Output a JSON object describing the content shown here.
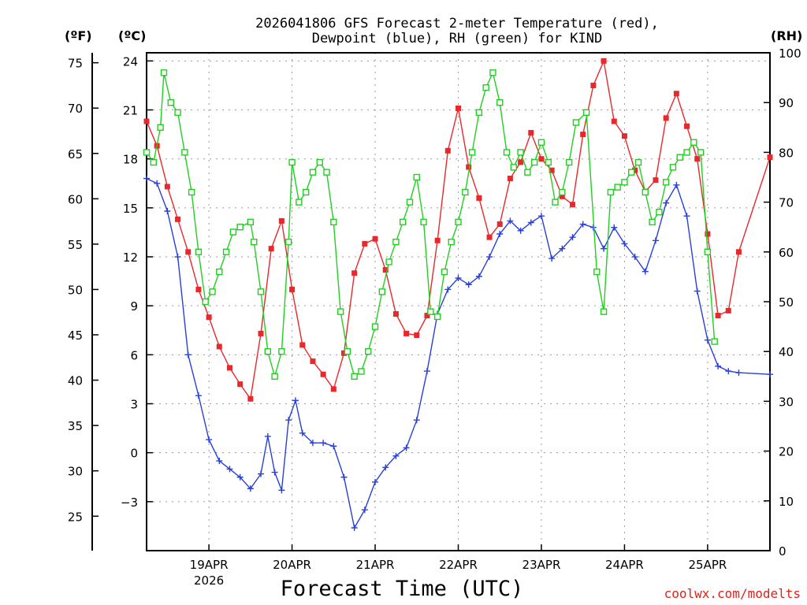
{
  "header": {
    "title_line1": "2026041806 GFS Forecast 2-meter Temperature (red),",
    "title_line2": "Dewpoint (blue), RH (green) for KIND",
    "unit_f": "(ºF)",
    "unit_c": "(ºC)",
    "unit_rh": "(RH)"
  },
  "footer": {
    "xlabel": "Forecast Time (UTC)",
    "credit": "coolwx.com/modelts"
  },
  "colors": {
    "temperature": "#e8282a",
    "dewpoint": "#2840d8",
    "rh": "#20d020",
    "grid": "#9a9a9a"
  },
  "chart_data": {
    "type": "line",
    "title": "2026041806 GFS Forecast 2-meter Temperature (red), Dewpoint (blue), RH (green) for KIND",
    "xlabel": "Forecast Time (UTC)",
    "x_unit": "hours since 2026-04-18 06Z",
    "xlim": [
      0,
      180
    ],
    "x_ticks": [
      {
        "hour": 18,
        "label": "19APR",
        "sublabel": "2026"
      },
      {
        "hour": 42,
        "label": "20APR",
        "sublabel": ""
      },
      {
        "hour": 66,
        "label": "21APR",
        "sublabel": ""
      },
      {
        "hour": 90,
        "label": "22APR",
        "sublabel": ""
      },
      {
        "hour": 114,
        "label": "23APR",
        "sublabel": ""
      },
      {
        "hour": 138,
        "label": "24APR",
        "sublabel": ""
      },
      {
        "hour": 162,
        "label": "25APR",
        "sublabel": ""
      }
    ],
    "left_axis_c": {
      "label": "(ºC)",
      "range": [
        -6,
        24.5
      ],
      "ticks": [
        24,
        21,
        18,
        15,
        12,
        9,
        6,
        3,
        0,
        -3
      ]
    },
    "left_axis_f": {
      "label": "(ºF)",
      "ticks": [
        75,
        70,
        65,
        60,
        55,
        50,
        45,
        40,
        35,
        30,
        25
      ]
    },
    "right_axis_rh": {
      "label": "(RH)",
      "range": [
        0,
        100
      ],
      "ticks": [
        100,
        90,
        80,
        70,
        60,
        50,
        40,
        30,
        20,
        10,
        0
      ]
    },
    "series": [
      {
        "name": "Temperature (red)",
        "unit": "C",
        "axis": "c",
        "marker": "filled-square",
        "points": [
          [
            0,
            20.3
          ],
          [
            3,
            18.8
          ],
          [
            6,
            16.3
          ],
          [
            9,
            14.3
          ],
          [
            12,
            12.3
          ],
          [
            15,
            10
          ],
          [
            18,
            8.3
          ],
          [
            21,
            6.5
          ],
          [
            24,
            5.2
          ],
          [
            27,
            4.2
          ],
          [
            30,
            3.3
          ],
          [
            33,
            7.3
          ],
          [
            36,
            12.5
          ],
          [
            39,
            14.2
          ],
          [
            42,
            10
          ],
          [
            45,
            6.6
          ],
          [
            48,
            5.6
          ],
          [
            51,
            4.8
          ],
          [
            54,
            3.9
          ],
          [
            57,
            6.1
          ],
          [
            60,
            11
          ],
          [
            63,
            12.8
          ],
          [
            66,
            13.1
          ],
          [
            69,
            11.2
          ],
          [
            72,
            8.5
          ],
          [
            75,
            7.3
          ],
          [
            78,
            7.2
          ],
          [
            81,
            8.4
          ],
          [
            84,
            13
          ],
          [
            87,
            18.5
          ],
          [
            90,
            21.1
          ],
          [
            93,
            17.5
          ],
          [
            96,
            15.6
          ],
          [
            99,
            13.2
          ],
          [
            102,
            14
          ],
          [
            105,
            16.8
          ],
          [
            108,
            17.8
          ],
          [
            111,
            19.6
          ],
          [
            114,
            18
          ],
          [
            117,
            17.3
          ],
          [
            120,
            15.7
          ],
          [
            123,
            15.2
          ],
          [
            126,
            19.5
          ],
          [
            129,
            22.5
          ],
          [
            132,
            24
          ],
          [
            135,
            20.3
          ],
          [
            138,
            19.4
          ],
          [
            141,
            17.3
          ],
          [
            144,
            16
          ],
          [
            147,
            16.7
          ],
          [
            150,
            20.5
          ],
          [
            153,
            22
          ],
          [
            156,
            20
          ],
          [
            159,
            18
          ],
          [
            162,
            13.4
          ],
          [
            165,
            8.4
          ],
          [
            168,
            8.7
          ],
          [
            171,
            12.3
          ],
          [
            180,
            18.1
          ]
        ]
      },
      {
        "name": "Dewpoint (blue)",
        "unit": "C",
        "axis": "c",
        "marker": "plus",
        "points": [
          [
            0,
            16.8
          ],
          [
            3,
            16.5
          ],
          [
            6,
            14.8
          ],
          [
            9,
            12
          ],
          [
            12,
            6
          ],
          [
            15,
            3.5
          ],
          [
            18,
            0.8
          ],
          [
            21,
            -0.5
          ],
          [
            24,
            -1.0
          ],
          [
            27,
            -1.5
          ],
          [
            30,
            -2.2
          ],
          [
            33,
            -1.3
          ],
          [
            35,
            1.0
          ],
          [
            37,
            -1.2
          ],
          [
            39,
            -2.3
          ],
          [
            41,
            2.0
          ],
          [
            43,
            3.2
          ],
          [
            45,
            1.2
          ],
          [
            48,
            0.6
          ],
          [
            51,
            0.6
          ],
          [
            54,
            0.4
          ],
          [
            57,
            -1.5
          ],
          [
            60,
            -4.6
          ],
          [
            63,
            -3.5
          ],
          [
            66,
            -1.8
          ],
          [
            69,
            -0.9
          ],
          [
            72,
            -0.2
          ],
          [
            75,
            0.3
          ],
          [
            78,
            2.0
          ],
          [
            81,
            5.0
          ],
          [
            84,
            8.5
          ],
          [
            87,
            10
          ],
          [
            90,
            10.7
          ],
          [
            93,
            10.3
          ],
          [
            96,
            10.8
          ],
          [
            99,
            12
          ],
          [
            102,
            13.4
          ],
          [
            105,
            14.2
          ],
          [
            108,
            13.6
          ],
          [
            111,
            14.1
          ],
          [
            114,
            14.5
          ],
          [
            117,
            11.9
          ],
          [
            120,
            12.5
          ],
          [
            123,
            13.2
          ],
          [
            126,
            14
          ],
          [
            129,
            13.8
          ],
          [
            132,
            12.5
          ],
          [
            135,
            13.8
          ],
          [
            138,
            12.8
          ],
          [
            141,
            12
          ],
          [
            144,
            11.1
          ],
          [
            147,
            13
          ],
          [
            150,
            15.3
          ],
          [
            153,
            16.4
          ],
          [
            156,
            14.5
          ],
          [
            159,
            9.9
          ],
          [
            162,
            6.9
          ],
          [
            165,
            5.3
          ],
          [
            168,
            5
          ],
          [
            171,
            4.9
          ],
          [
            180,
            4.8
          ]
        ]
      },
      {
        "name": "RH (green)",
        "unit": "%",
        "axis": "rh",
        "marker": "open-square",
        "points": [
          [
            0,
            80
          ],
          [
            2,
            78
          ],
          [
            4,
            85
          ],
          [
            5,
            96
          ],
          [
            7,
            90
          ],
          [
            9,
            88
          ],
          [
            11,
            80
          ],
          [
            13,
            72
          ],
          [
            15,
            60
          ],
          [
            17,
            50
          ],
          [
            19,
            52
          ],
          [
            21,
            56
          ],
          [
            23,
            60
          ],
          [
            25,
            64
          ],
          [
            27,
            65
          ],
          [
            30,
            66
          ],
          [
            31,
            62
          ],
          [
            33,
            52
          ],
          [
            35,
            40
          ],
          [
            37,
            35
          ],
          [
            39,
            40
          ],
          [
            41,
            62
          ],
          [
            42,
            78
          ],
          [
            44,
            70
          ],
          [
            46,
            72
          ],
          [
            48,
            76
          ],
          [
            50,
            78
          ],
          [
            52,
            76
          ],
          [
            54,
            66
          ],
          [
            56,
            48
          ],
          [
            58,
            40
          ],
          [
            60,
            35
          ],
          [
            62,
            36
          ],
          [
            64,
            40
          ],
          [
            66,
            45
          ],
          [
            68,
            52
          ],
          [
            70,
            58
          ],
          [
            72,
            62
          ],
          [
            74,
            66
          ],
          [
            76,
            70
          ],
          [
            78,
            75
          ],
          [
            80,
            66
          ],
          [
            82,
            48
          ],
          [
            84,
            47
          ],
          [
            86,
            56
          ],
          [
            88,
            62
          ],
          [
            90,
            66
          ],
          [
            92,
            72
          ],
          [
            94,
            80
          ],
          [
            96,
            88
          ],
          [
            98,
            93
          ],
          [
            100,
            96
          ],
          [
            102,
            90
          ],
          [
            104,
            80
          ],
          [
            106,
            77
          ],
          [
            108,
            80
          ],
          [
            110,
            76
          ],
          [
            112,
            78
          ],
          [
            114,
            82
          ],
          [
            116,
            78
          ],
          [
            118,
            70
          ],
          [
            120,
            72
          ],
          [
            122,
            78
          ],
          [
            124,
            86
          ],
          [
            127,
            88
          ],
          [
            130,
            56
          ],
          [
            132,
            48
          ],
          [
            134,
            72
          ],
          [
            136,
            73
          ],
          [
            138,
            74
          ],
          [
            140,
            76
          ],
          [
            142,
            78
          ],
          [
            144,
            72
          ],
          [
            146,
            66
          ],
          [
            148,
            68
          ],
          [
            150,
            74
          ],
          [
            152,
            77
          ],
          [
            154,
            79
          ],
          [
            156,
            80
          ],
          [
            158,
            82
          ],
          [
            160,
            80
          ],
          [
            162,
            60
          ],
          [
            164,
            42
          ]
        ]
      }
    ]
  }
}
